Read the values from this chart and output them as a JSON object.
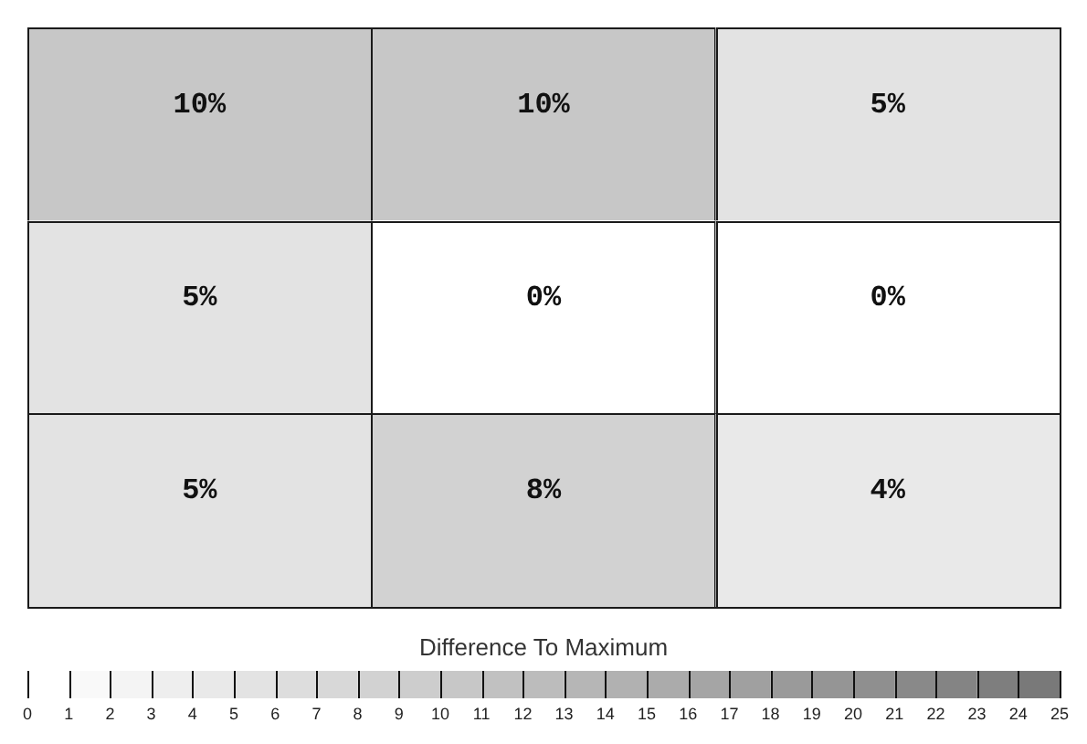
{
  "chart_data": {
    "type": "heatmap",
    "categories": [
      null,
      null,
      null
    ],
    "y_categories": [
      null,
      null,
      null
    ],
    "cells": [
      [
        10,
        10,
        5
      ],
      [
        5,
        0,
        0
      ],
      [
        5,
        8,
        4
      ]
    ],
    "cell_labels": [
      [
        "10%",
        "10%",
        "5%"
      ],
      [
        "5%",
        "0%",
        "0%"
      ],
      [
        "5%",
        "8%",
        "4%"
      ]
    ],
    "clabel": "Difference To Maximum",
    "clim": [
      0,
      25
    ],
    "cticks": [
      0,
      1,
      2,
      3,
      4,
      5,
      6,
      7,
      8,
      9,
      10,
      11,
      12,
      13,
      14,
      15,
      16,
      17,
      18,
      19,
      20,
      21,
      22,
      23,
      24,
      25
    ]
  }
}
